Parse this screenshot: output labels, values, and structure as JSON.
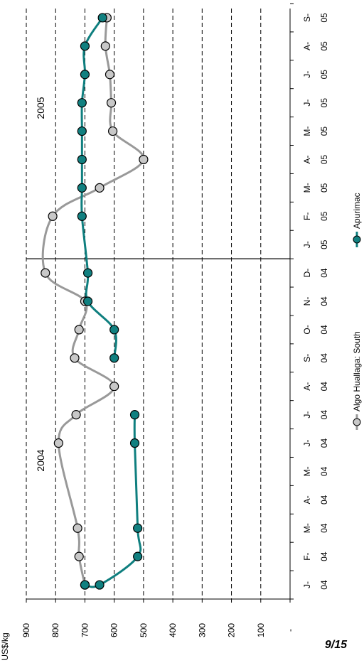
{
  "chart_data": {
    "type": "line",
    "orientation": "rotated-90",
    "categories": [
      [
        "J-",
        "04"
      ],
      [
        "F-",
        "04"
      ],
      [
        "M-",
        "04"
      ],
      [
        "A-",
        "04"
      ],
      [
        "M-",
        "04"
      ],
      [
        "J-",
        "04"
      ],
      [
        "J-",
        "04"
      ],
      [
        "A-",
        "04"
      ],
      [
        "S-",
        "04"
      ],
      [
        "O-",
        "04"
      ],
      [
        "N-",
        "04"
      ],
      [
        "D-",
        "04"
      ],
      [
        "J-",
        "05"
      ],
      [
        "F-",
        "05"
      ],
      [
        "M-",
        "05"
      ],
      [
        "A-",
        "05"
      ],
      [
        "M-",
        "05"
      ],
      [
        "J-",
        "05"
      ],
      [
        "J-",
        "05"
      ],
      [
        "A-",
        "05"
      ],
      [
        "S-",
        "05"
      ]
    ],
    "x": [
      0,
      1,
      2,
      3,
      4,
      5,
      6,
      7,
      8,
      9,
      10,
      11,
      12,
      13,
      14,
      15,
      16,
      17,
      18,
      19,
      20
    ],
    "series": [
      {
        "name": "Algo Huallaga: South",
        "color": "#999999",
        "marker_fill": "#c8c8c8",
        "points": [
          [
            0,
            700
          ],
          [
            1,
            720
          ],
          [
            2,
            725
          ],
          [
            5,
            790
          ],
          [
            6,
            730
          ],
          [
            7,
            600
          ],
          [
            8,
            735
          ],
          [
            9,
            720
          ],
          [
            10,
            700
          ],
          [
            11,
            835
          ],
          [
            13,
            810
          ],
          [
            14,
            650
          ],
          [
            15,
            500
          ],
          [
            16,
            605
          ],
          [
            17,
            610
          ],
          [
            18,
            615
          ],
          [
            19,
            630
          ],
          [
            20,
            625
          ]
        ]
      },
      {
        "name": "Apurimac",
        "color": "#0f7f7f",
        "marker_fill": "#118080",
        "points": [
          [
            0,
            700
          ],
          [
            0,
            650
          ],
          [
            1,
            520
          ],
          [
            2,
            520
          ],
          [
            5,
            530
          ],
          [
            6,
            530
          ]
        ]
      },
      {
        "name": "Apurimac",
        "color": "#0f7f7f",
        "marker_fill": "#118080",
        "points": [
          [
            8,
            600
          ],
          [
            9,
            600
          ],
          [
            10,
            690
          ],
          [
            11,
            690
          ],
          [
            13,
            710
          ],
          [
            14,
            710
          ],
          [
            15,
            710
          ],
          [
            16,
            710
          ],
          [
            17,
            710
          ],
          [
            18,
            700
          ],
          [
            19,
            700
          ],
          [
            20,
            640
          ]
        ]
      }
    ],
    "ylabel": "US$/kg",
    "ylim": [
      0,
      900
    ],
    "yticks": [
      "-",
      "100",
      "200",
      "300",
      "400",
      "500",
      "600",
      "700",
      "800",
      "900"
    ],
    "annotations": [
      "2004",
      "2005"
    ],
    "legend": [
      "Algo Huallaga: South",
      "Apurimac"
    ],
    "grid": "dashed"
  },
  "page_number": "9/15"
}
